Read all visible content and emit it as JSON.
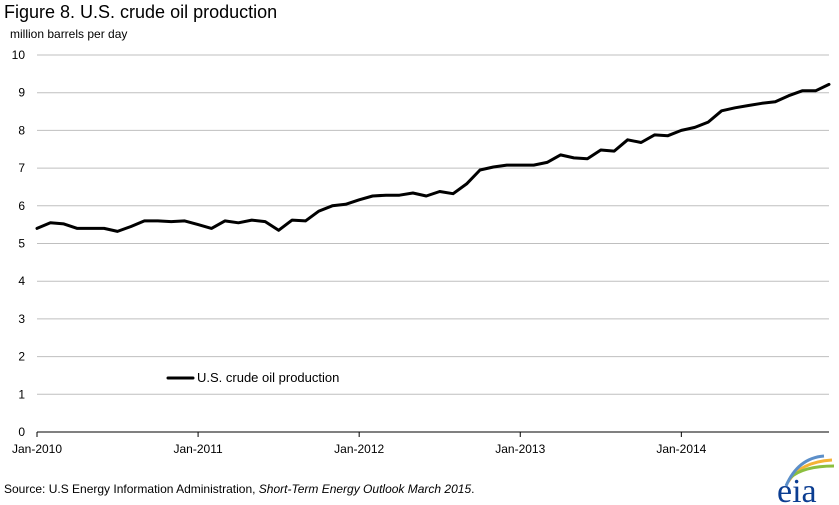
{
  "chart_data": {
    "type": "line",
    "title": "Figure 8. U.S. crude oil production",
    "ylabel": "million barrels  per day",
    "xlabel": "",
    "ylim": [
      0,
      10
    ],
    "yticks": [
      0,
      1,
      2,
      3,
      4,
      5,
      6,
      7,
      8,
      9,
      10
    ],
    "xlim": [
      0,
      59
    ],
    "xticks": [
      {
        "label": "Jan-2010",
        "x": 0
      },
      {
        "label": "Jan-2011",
        "x": 12
      },
      {
        "label": "Jan-2012",
        "x": 24
      },
      {
        "label": "Jan-2013",
        "x": 36
      },
      {
        "label": "Jan-2014",
        "x": 48
      }
    ],
    "grid": true,
    "legend_placement": "lower-left",
    "series": [
      {
        "name": "U.S. crude oil production",
        "color": "#000000",
        "values": [
          5.4,
          5.55,
          5.52,
          5.4,
          5.4,
          5.4,
          5.32,
          5.45,
          5.6,
          5.6,
          5.58,
          5.6,
          5.5,
          5.4,
          5.6,
          5.55,
          5.62,
          5.58,
          5.35,
          5.62,
          5.6,
          5.86,
          6.0,
          6.04,
          6.16,
          6.26,
          6.28,
          6.28,
          6.34,
          6.26,
          6.38,
          6.32,
          6.58,
          6.95,
          7.03,
          7.08,
          7.08,
          7.08,
          7.15,
          7.35,
          7.27,
          7.25,
          7.48,
          7.45,
          7.75,
          7.68,
          7.88,
          7.86,
          8.0,
          8.08,
          8.22,
          8.52,
          8.6,
          8.66,
          8.72,
          8.76,
          8.92,
          9.05,
          9.05,
          9.22
        ]
      }
    ]
  },
  "source": {
    "prefix": "Source: U.S Energy Information  Administration, ",
    "publication": "Short-Term  Energy  Outlook March 2015",
    "suffix": "."
  },
  "logo": {
    "text": "eia",
    "colors": [
      "#0b3d91",
      "#5c8fc9",
      "#8cbf3f",
      "#f5b335"
    ]
  }
}
